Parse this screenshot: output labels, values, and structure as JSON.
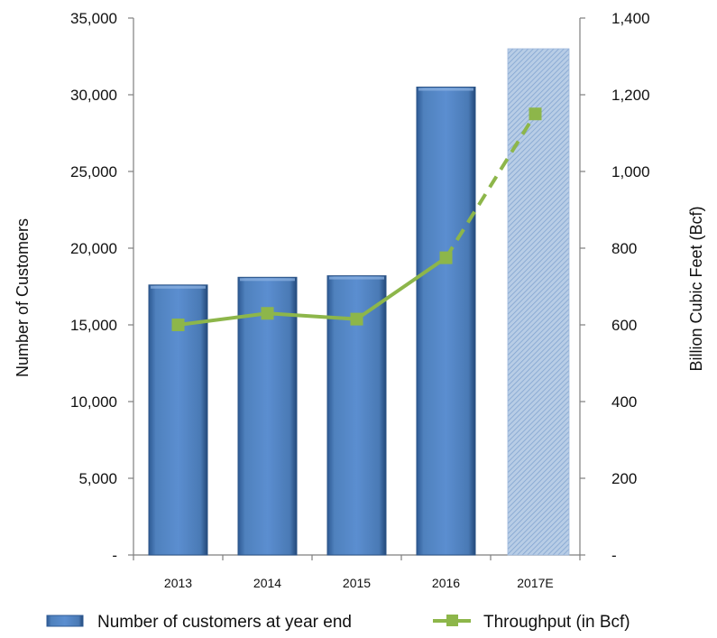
{
  "chart_data": {
    "type": "bar",
    "categories": [
      "2013",
      "2014",
      "2015",
      "2016",
      "2017E"
    ],
    "series": [
      {
        "name": "Number of customers at year end",
        "type": "bar",
        "axis": "left",
        "values": [
          17600,
          18100,
          18200,
          30500,
          33000
        ],
        "estimated": [
          false,
          false,
          false,
          false,
          true
        ],
        "color": "#4f81bd"
      },
      {
        "name": "Throughput (in Bcf)",
        "type": "line",
        "axis": "right",
        "values": [
          600,
          630,
          615,
          775,
          1150
        ],
        "estimated": [
          false,
          false,
          false,
          false,
          true
        ],
        "color": "#8db64a"
      }
    ],
    "ylabel": "Number of Customers",
    "y2label": "Billion Cubic Feet (Bcf)",
    "ylim": [
      0,
      35000
    ],
    "y2lim": [
      0,
      1400
    ],
    "yticks": [
      "-",
      "5,000",
      "10,000",
      "15,000",
      "20,000",
      "25,000",
      "30,000",
      "35,000"
    ],
    "y2ticks": [
      "-",
      "200",
      "400",
      "600",
      "800",
      "1,000",
      "1,200",
      "1,400"
    ],
    "grid": false,
    "legend": "bottom"
  }
}
